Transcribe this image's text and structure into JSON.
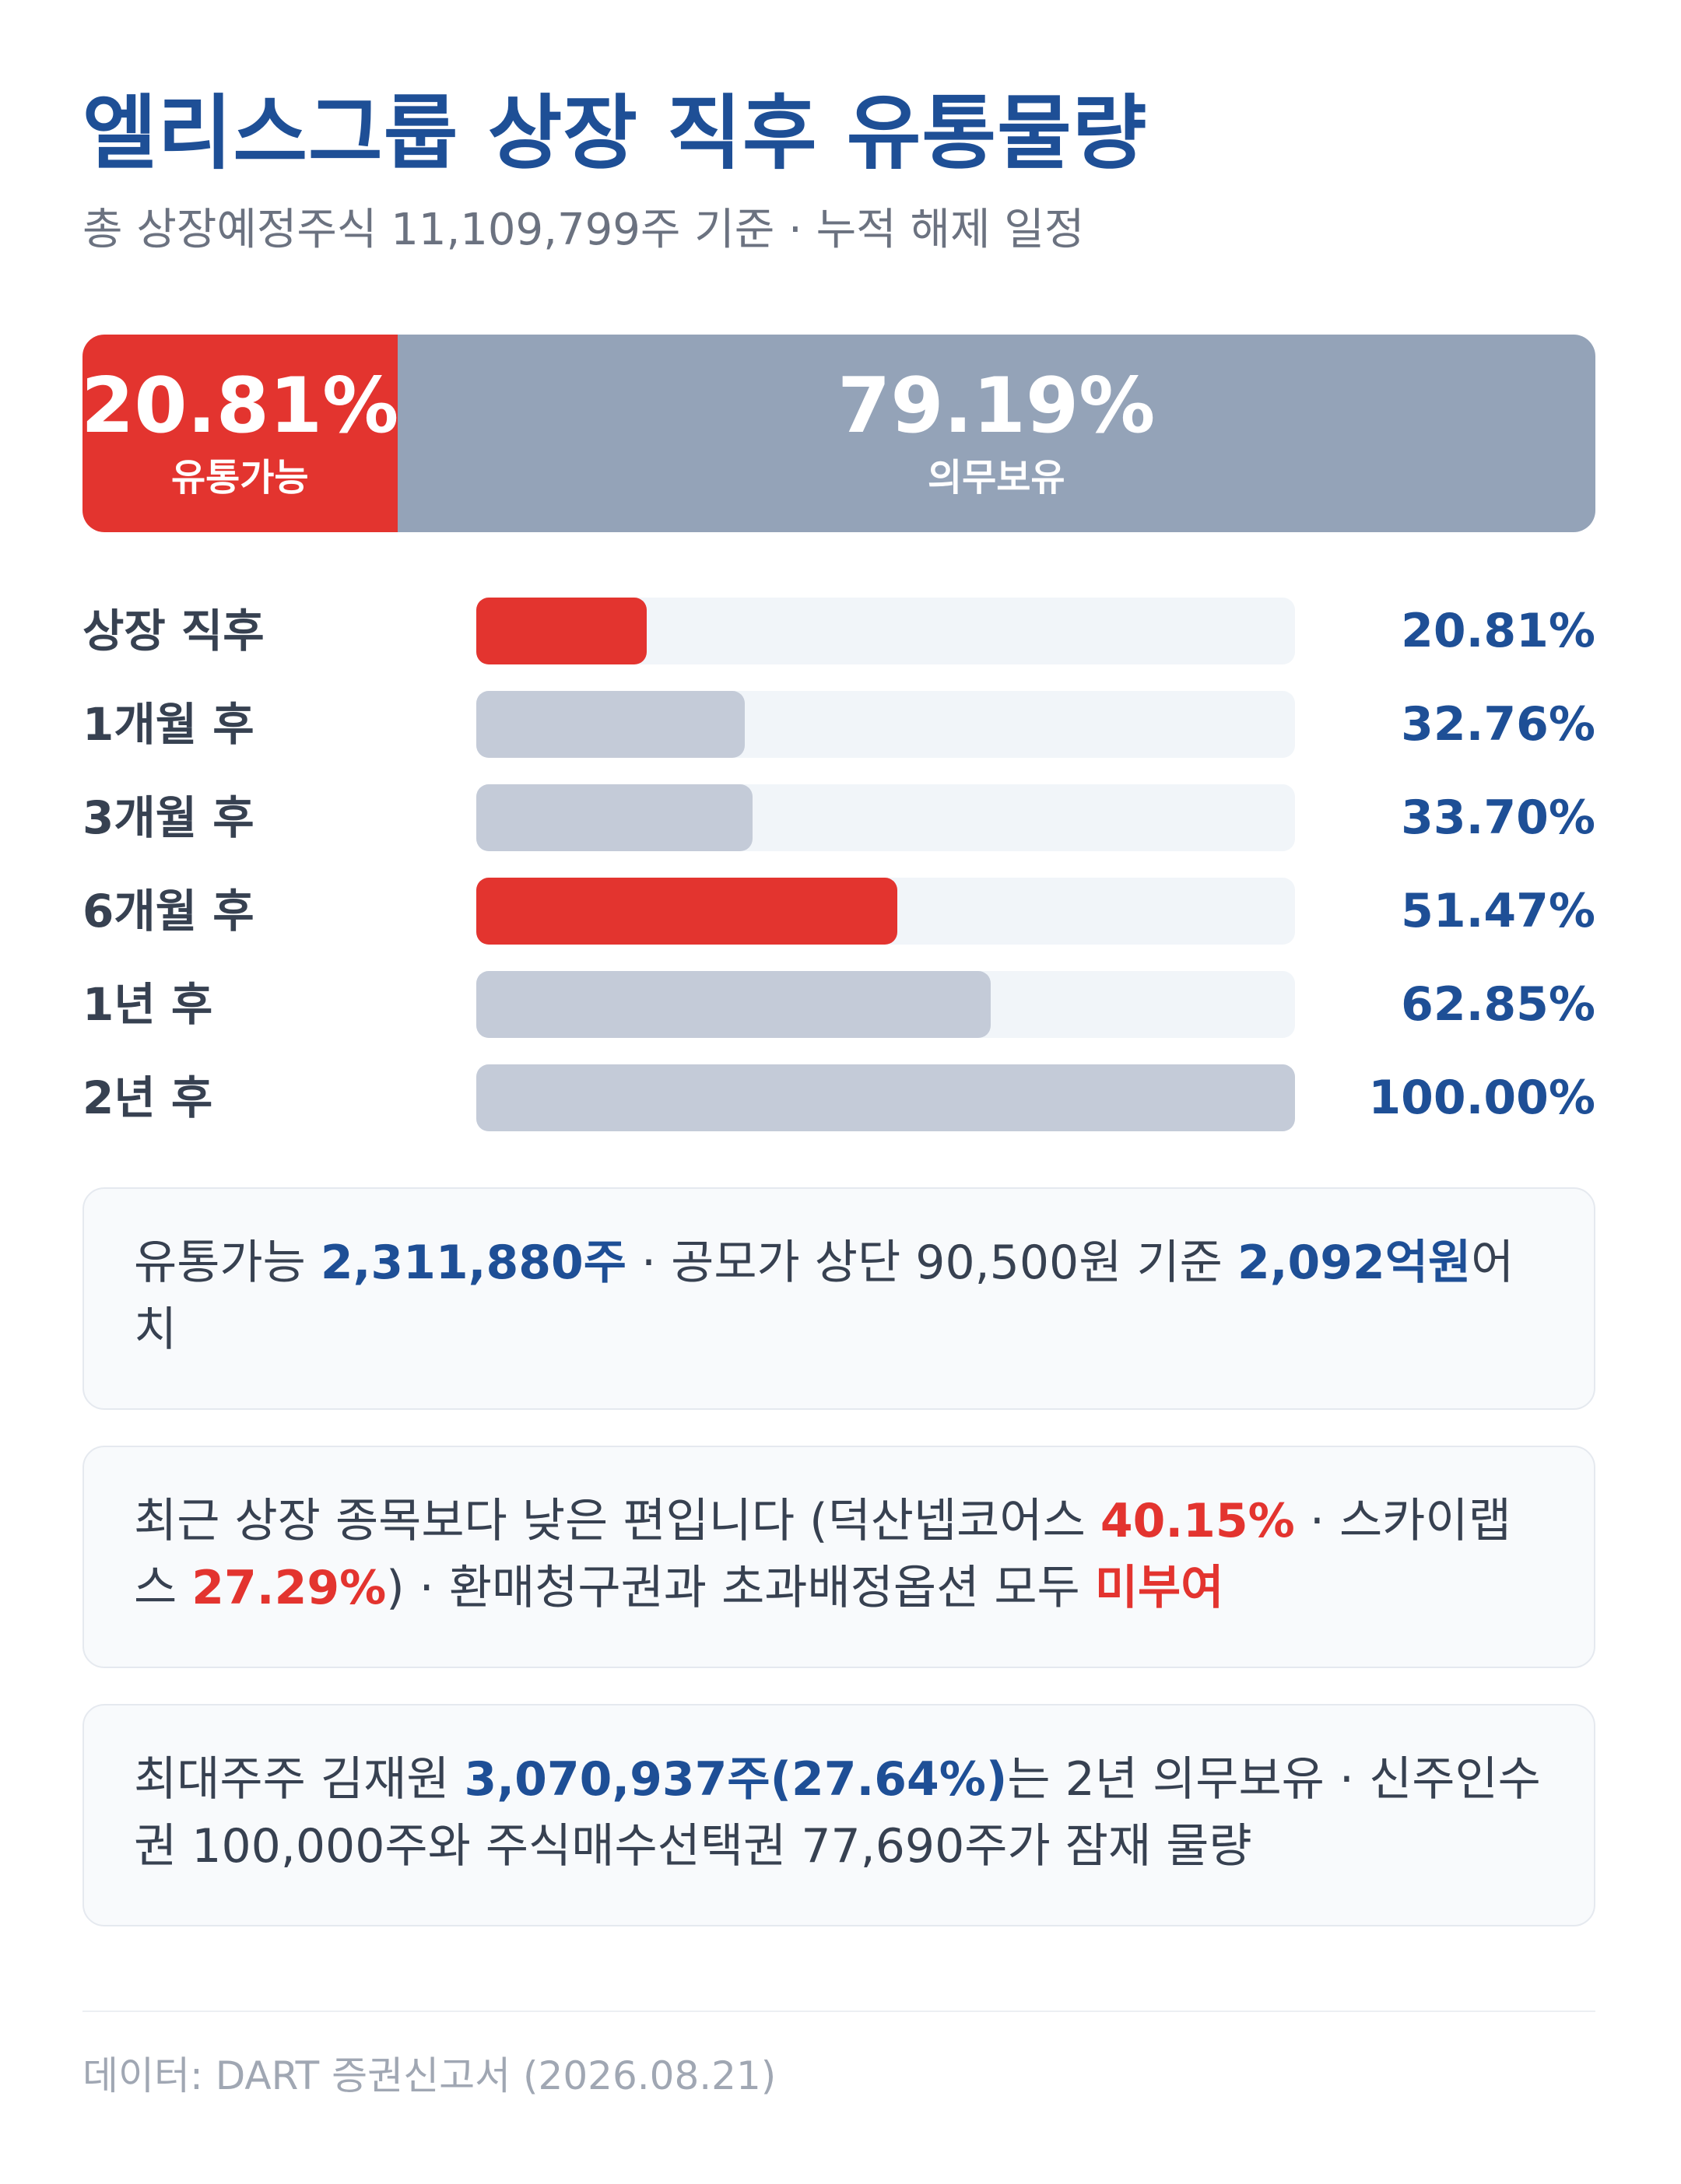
{
  "header": {
    "title": "엘리스그룹 상장 직후 유통물량",
    "subtitle": "총 상장예정주식 11,109,799주 기준 · 누적 해제 일정"
  },
  "split": {
    "free_pct_label": "20.81%",
    "free_label": "유통가능",
    "free_fraction": 20.81,
    "locked_pct_label": "79.19%",
    "locked_label": "의무보유",
    "locked_fraction": 79.19
  },
  "colors": {
    "accent_red": "#e3342f",
    "brand_blue": "#1e4f96",
    "bar_gray": "#c4cbd8",
    "locked_gray": "#94a3b8"
  },
  "chart_data": {
    "type": "bar",
    "orientation": "horizontal",
    "categories": [
      "상장 직후",
      "1개월 후",
      "3개월 후",
      "6개월 후",
      "1년 후",
      "2년 후"
    ],
    "values": [
      20.81,
      32.76,
      33.7,
      51.47,
      62.85,
      100
    ],
    "value_labels": [
      "20.81%",
      "32.76%",
      "33.70%",
      "51.47%",
      "62.85%",
      "100.00%"
    ],
    "highlighted": [
      true,
      false,
      false,
      true,
      false,
      false
    ],
    "xlim": [
      0,
      100
    ],
    "grid": false
  },
  "notes": {
    "card1": {
      "p1": "유통가능 ",
      "b1": "2,311,880주",
      "p2": " · 공모가 상단 90,500원 기준 ",
      "b2": "2,092억원",
      "p3": "어치"
    },
    "card2": {
      "p1": "최근 상장 종목보다 낮은 편입니다 (덕산넵코어스 ",
      "r1": "40.15%",
      "p2": " · 스카이랩스 ",
      "r2": "27.29%",
      "p3": ") · 환매청구권과 초과배정옵션 모두 ",
      "r3": "미부여"
    },
    "card3": {
      "p1": "최대주주 김재원 ",
      "b1": "3,070,937주(27.64%)",
      "p2": "는 2년 의무보유 · 신주인수권 100,000주와 주식매수선택권 77,690주가 잠재 물량"
    }
  },
  "footer": {
    "source": "데이터: DART 증권신고서 (2026.08.21)"
  }
}
